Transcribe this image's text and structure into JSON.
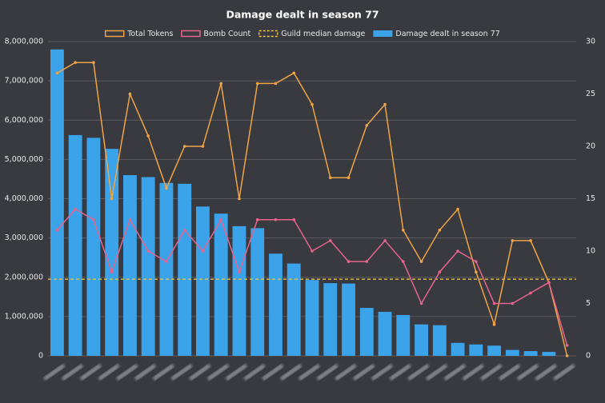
{
  "chart_data": {
    "type": "bar",
    "title": "Damage dealt in season 77",
    "categories": [
      null,
      null,
      null,
      null,
      null,
      null,
      null,
      null,
      null,
      null,
      null,
      null,
      null,
      null,
      null,
      null,
      null,
      null,
      null,
      null,
      null,
      null,
      null,
      null,
      null,
      null,
      null,
      null,
      null
    ],
    "series": [
      {
        "name": "Total Tokens",
        "type": "line",
        "axis": "y2",
        "color": "#f0a446",
        "values": [
          27,
          28,
          28,
          15,
          25,
          21,
          16,
          20,
          20,
          26,
          15,
          26,
          26,
          27,
          24,
          17,
          17,
          22,
          24,
          12,
          9,
          12,
          14,
          8,
          3,
          11,
          11,
          7,
          0
        ]
      },
      {
        "name": "Bomb Count",
        "type": "line",
        "axis": "y2",
        "color": "#e8648c",
        "values": [
          12,
          14,
          13,
          8,
          13,
          10,
          9,
          12,
          10,
          13,
          8,
          13,
          13,
          13,
          10,
          11,
          9,
          9,
          11,
          9,
          5,
          8,
          10,
          9,
          5,
          5,
          6,
          7,
          1
        ]
      },
      {
        "name": "Guild median damage",
        "type": "hline",
        "color": "#e8c23e",
        "value": 1950000
      },
      {
        "name": "Damage dealt in season 77",
        "type": "bar",
        "color": "#3ba3ea",
        "values": [
          7800000,
          5620000,
          5550000,
          5270000,
          4600000,
          4550000,
          4400000,
          4380000,
          3800000,
          3620000,
          3300000,
          3250000,
          2600000,
          2350000,
          1930000,
          1850000,
          1840000,
          1220000,
          1120000,
          1040000,
          800000,
          780000,
          330000,
          290000,
          260000,
          150000,
          120000,
          100000,
          0
        ]
      }
    ],
    "ylim": [
      0,
      8000000
    ],
    "yticks": [
      0,
      {
        "value": 1000000,
        "label": "1,000,000"
      },
      {
        "value": 2000000,
        "label": "2,000,000"
      },
      {
        "value": 3000000,
        "label": "3,000,000"
      },
      {
        "value": 4000000,
        "label": "4,000,000"
      },
      {
        "value": 5000000,
        "label": "5,000,000"
      },
      {
        "value": 6000000,
        "label": "6,000,000"
      },
      {
        "value": 7000000,
        "label": "7,000,000"
      },
      {
        "value": 8000000,
        "label": "8,000,000"
      }
    ],
    "y2lim": [
      0,
      30
    ],
    "y2ticks": [
      0,
      5,
      10,
      15,
      20,
      25,
      30
    ],
    "grid": true
  }
}
